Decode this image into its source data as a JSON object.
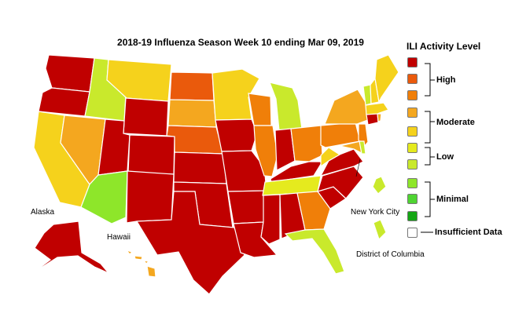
{
  "title": "2018-19 Influenza Season Week 10 ending Mar 09, 2019",
  "map_labels": {
    "alaska": "Alaska",
    "hawaii": "Hawaii",
    "new_york_city": "New York City",
    "district_of_columbia": "District of Columbia"
  },
  "legend": {
    "title": "ILI Activity Level",
    "levels": [
      {
        "level": 10,
        "color": "#c00000"
      },
      {
        "level": 9,
        "color": "#ea5a0c"
      },
      {
        "level": 8,
        "color": "#f07f09"
      },
      {
        "level": 7,
        "color": "#f4a71f"
      },
      {
        "level": 6,
        "color": "#f5d21c"
      },
      {
        "level": 5,
        "color": "#e5ea1e"
      },
      {
        "level": 4,
        "color": "#c9e92c"
      },
      {
        "level": 3,
        "color": "#8ee62a"
      },
      {
        "level": 2,
        "color": "#4fd432"
      },
      {
        "level": 1,
        "color": "#15a615"
      }
    ],
    "groups": [
      "High",
      "Moderate",
      "Low",
      "Minimal"
    ],
    "insufficient": {
      "label": "Insufficient Data",
      "color": "#ffffff"
    }
  },
  "map_data": {
    "AK": "high",
    "HI": "moderate",
    "WA": "high",
    "OR": "high",
    "CA": "moderate_low",
    "NV": "moderate",
    "ID": "low",
    "MT": "moderate_low",
    "WY": "high",
    "UT": "high",
    "AZ": "minimal",
    "CO": "high",
    "NM": "high",
    "ND": "high_orange",
    "SD": "moderate",
    "NE": "high_orange",
    "KS": "high",
    "OK": "high",
    "TX": "high",
    "MN": "moderate_low",
    "IA": "high",
    "MO": "high",
    "AR": "high",
    "LA": "high",
    "WI": "moderate_orange",
    "IL": "moderate_orange",
    "MI": "low",
    "IN": "high",
    "OH": "moderate_orange",
    "KY": "high",
    "TN": "low_yellow",
    "MS": "high",
    "AL": "high",
    "GA": "moderate_orange",
    "FL": "low",
    "SC": "high",
    "NC": "high",
    "VA": "high",
    "WV": "moderate_low",
    "PA": "moderate_orange",
    "NY": "moderate",
    "NJ": "moderate_orange",
    "DE": "low",
    "MD": "moderate",
    "CT": "high",
    "RI": "moderate",
    "MA": "moderate_low",
    "VT": "low",
    "NH": "moderate_low",
    "ME": "moderate_low",
    "NYC": "low",
    "DC": "low"
  }
}
